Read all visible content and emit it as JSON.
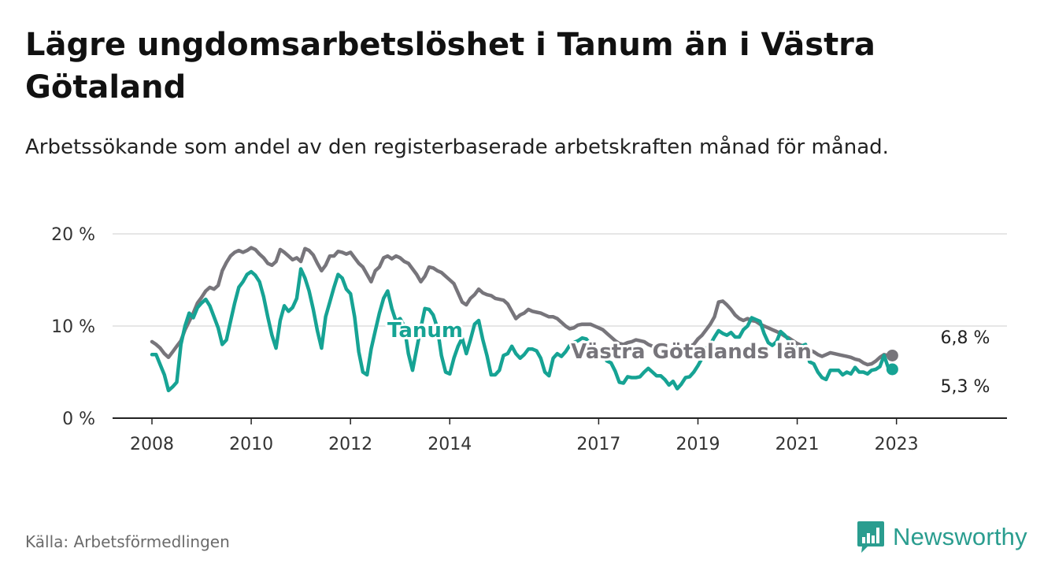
{
  "title": "Lägre ungdomsarbetslöshet i Tanum än i Västra Götaland",
  "subtitle": "Arbetssökande som andel av den registerbaserade arbetskraften månad för månad.",
  "source": "Källa: Arbetsförmedlingen",
  "brand": {
    "name": "Newsworthy",
    "icon": "newsworthy-logo-icon"
  },
  "colors": {
    "tanum": "#16a394",
    "vg": "#77757b",
    "grid": "#dddddd",
    "axis": "#222222",
    "brand": "#2a9d8f"
  },
  "chart_data": {
    "type": "line",
    "title": "Lägre ungdomsarbetslöshet i Tanum än i Västra Götaland",
    "xlabel": "",
    "ylabel": "",
    "ylim": [
      0,
      20
    ],
    "yticks": [
      0,
      10,
      20
    ],
    "ytick_labels": [
      "0 %",
      "10 %",
      "20 %"
    ],
    "xlim": [
      2008.0,
      2024.417
    ],
    "xticks": [
      2008,
      2010,
      2012,
      2014,
      2017,
      2019,
      2021,
      2023
    ],
    "xtick_labels": [
      "2008",
      "2010",
      "2012",
      "2014",
      "2017",
      "2019",
      "2021",
      "2023"
    ],
    "x_start": 2008.0,
    "x_step": 0.08333,
    "grid": true,
    "legend": "inline labels",
    "series": [
      {
        "name": "Tanum",
        "label": "Tanum",
        "end_label": "5,3 %",
        "values": [
          6.9,
          6.9,
          5.8,
          4.7,
          3.0,
          3.4,
          3.9,
          8.0,
          10.0,
          11.4,
          10.9,
          12.0,
          12.5,
          12.9,
          12.2,
          11.0,
          9.8,
          8.0,
          8.5,
          10.5,
          12.5,
          14.2,
          14.8,
          15.6,
          15.9,
          15.5,
          14.8,
          13.2,
          11.0,
          9.0,
          7.6,
          10.6,
          12.2,
          11.6,
          12.0,
          13.0,
          16.2,
          15.2,
          13.8,
          11.8,
          9.5,
          7.6,
          11.0,
          12.6,
          14.2,
          15.6,
          15.2,
          14.0,
          13.5,
          11.0,
          7.2,
          5.0,
          4.7,
          7.5,
          9.5,
          11.4,
          13.0,
          13.8,
          11.9,
          10.5,
          10.8,
          10.0,
          7.0,
          5.2,
          7.5,
          9.8,
          11.9,
          11.8,
          11.2,
          9.8,
          6.8,
          5.0,
          4.8,
          6.5,
          7.8,
          8.7,
          7.0,
          8.5,
          10.2,
          10.6,
          8.5,
          6.8,
          4.7,
          4.7,
          5.2,
          6.8,
          7.0,
          7.8,
          7.0,
          6.5,
          6.9,
          7.5,
          7.5,
          7.3,
          6.5,
          5.0,
          4.6,
          6.5,
          7.0,
          6.7,
          7.2,
          7.9,
          8.2,
          8.4,
          8.7,
          8.6,
          8.0,
          7.3,
          6.8,
          6.9,
          6.2,
          6.0,
          5.1,
          3.9,
          3.8,
          4.5,
          4.4,
          4.4,
          4.5,
          5.0,
          5.4,
          5.0,
          4.6,
          4.6,
          4.2,
          3.6,
          4.0,
          3.2,
          3.7,
          4.4,
          4.5,
          5.0,
          5.7,
          6.5,
          7.5,
          8.0,
          8.8,
          9.5,
          9.2,
          9.0,
          9.3,
          8.8,
          8.8,
          9.6,
          10.0,
          10.9,
          10.7,
          10.5,
          9.2,
          8.2,
          7.9,
          8.3,
          9.4,
          9.0,
          8.5,
          7.5,
          7.6,
          7.8,
          8.0,
          6.1,
          5.9,
          5.0,
          4.4,
          4.2,
          5.2,
          5.2,
          5.2,
          4.7,
          5.0,
          4.8,
          5.5,
          5.0,
          5.0,
          4.8,
          5.2,
          5.3,
          5.6,
          6.8,
          5.5,
          5.3
        ]
      },
      {
        "name": "Västra Götalands län",
        "label": "Västra Götalands län",
        "end_label": "6,8 %",
        "values": [
          8.3,
          8.0,
          7.6,
          7.0,
          6.6,
          7.2,
          7.8,
          8.4,
          9.6,
          10.5,
          11.4,
          12.5,
          13.1,
          13.8,
          14.2,
          14.0,
          14.4,
          16.0,
          16.9,
          17.6,
          18.0,
          18.2,
          18.0,
          18.2,
          18.5,
          18.3,
          17.8,
          17.4,
          16.8,
          16.6,
          17.0,
          18.3,
          18.0,
          17.6,
          17.2,
          17.4,
          17.0,
          18.4,
          18.2,
          17.7,
          16.8,
          16.0,
          16.6,
          17.6,
          17.6,
          18.1,
          18.0,
          17.8,
          18.0,
          17.4,
          16.8,
          16.4,
          15.6,
          14.8,
          16.0,
          16.4,
          17.4,
          17.6,
          17.3,
          17.6,
          17.4,
          17.0,
          16.8,
          16.2,
          15.6,
          14.8,
          15.4,
          16.4,
          16.3,
          16.0,
          15.8,
          15.4,
          15.0,
          14.6,
          13.6,
          12.6,
          12.3,
          13.0,
          13.4,
          14.0,
          13.6,
          13.4,
          13.3,
          13.0,
          12.9,
          12.8,
          12.4,
          11.6,
          10.8,
          11.2,
          11.4,
          11.8,
          11.6,
          11.5,
          11.4,
          11.2,
          11.0,
          11.0,
          10.8,
          10.4,
          10.0,
          9.7,
          9.8,
          10.1,
          10.2,
          10.2,
          10.2,
          10.0,
          9.8,
          9.6,
          9.2,
          8.8,
          8.4,
          8.1,
          8.0,
          8.2,
          8.3,
          8.5,
          8.4,
          8.3,
          8.0,
          7.8,
          7.4,
          7.1,
          7.0,
          7.2,
          7.3,
          7.5,
          7.6,
          7.7,
          7.8,
          8.0,
          8.6,
          9.0,
          9.6,
          10.2,
          11.0,
          12.6,
          12.7,
          12.3,
          11.8,
          11.2,
          10.8,
          10.6,
          10.8,
          10.6,
          10.5,
          10.2,
          10.0,
          9.8,
          9.6,
          9.4,
          9.2,
          8.9,
          8.7,
          8.4,
          8.1,
          7.9,
          7.7,
          7.4,
          7.2,
          6.9,
          6.7,
          6.9,
          7.1,
          7.0,
          6.9,
          6.8,
          6.7,
          6.6,
          6.4,
          6.3,
          6.0,
          5.8,
          5.9,
          6.2,
          6.6,
          6.9,
          6.8,
          6.8
        ]
      }
    ]
  }
}
